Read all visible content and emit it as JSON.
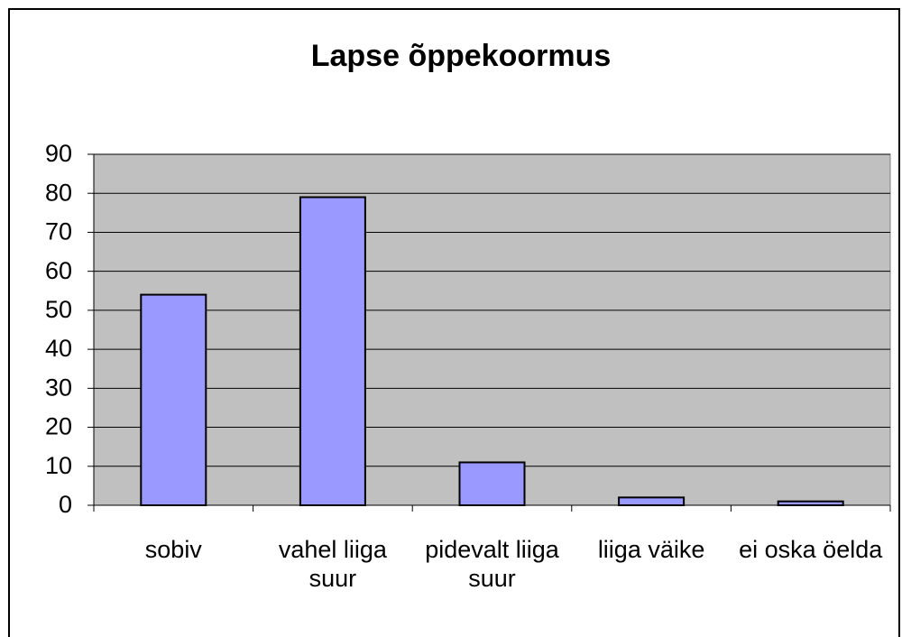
{
  "chart_data": {
    "type": "bar",
    "title": "Lapse õppekoormus",
    "categories": [
      "sobiv",
      "vahel liiga suur",
      "pidevalt liiga suur",
      "liiga väike",
      "ei oska öelda"
    ],
    "values": [
      54,
      79,
      11,
      2,
      1
    ],
    "color": "#9999ff",
    "ylim": [
      0,
      90
    ],
    "yticks": [
      0,
      10,
      20,
      30,
      40,
      50,
      60,
      70,
      80,
      90
    ],
    "grid": true
  }
}
